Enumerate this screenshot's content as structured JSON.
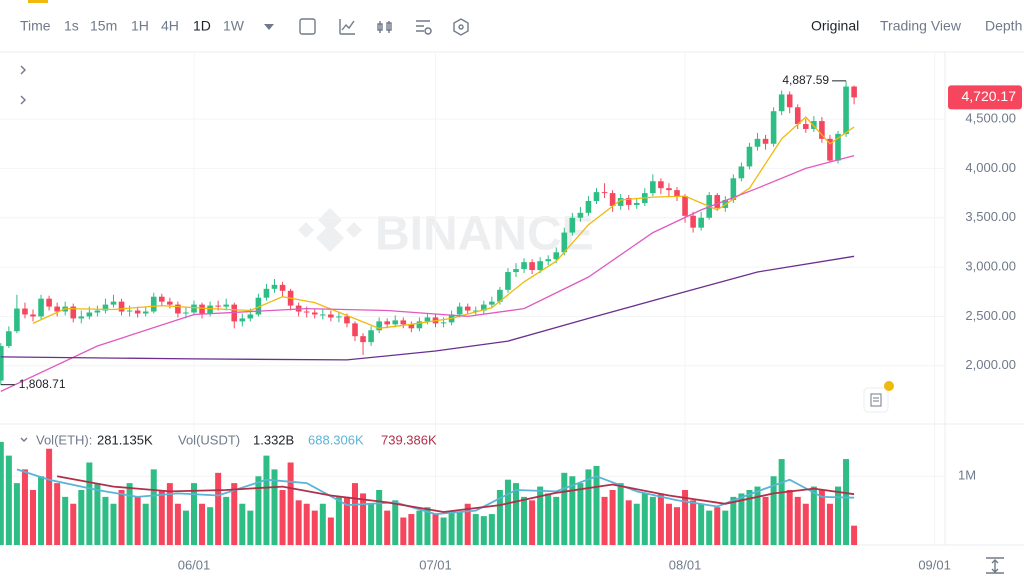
{
  "toolbar": {
    "intervals": [
      "Time",
      "1s",
      "15m",
      "1H",
      "4H",
      "1D",
      "1W"
    ],
    "views": [
      "Original",
      "Trading View",
      "Depth"
    ]
  },
  "watermark": "BINANCE",
  "chart_data": {
    "type": "candlestick",
    "up_color": "#2ebd85",
    "down_color": "#f6465d",
    "grid": true,
    "dates": [
      "05/08",
      "05/09",
      "05/10",
      "05/11",
      "05/12",
      "05/13",
      "05/14",
      "05/15",
      "05/16",
      "05/17",
      "05/18",
      "05/19",
      "05/20",
      "05/21",
      "05/22",
      "05/23",
      "05/24",
      "05/25",
      "05/26",
      "05/27",
      "05/28",
      "05/29",
      "05/30",
      "05/31",
      "06/01",
      "06/02",
      "06/03",
      "06/04",
      "06/05",
      "06/06",
      "06/07",
      "06/08",
      "06/09",
      "06/10",
      "06/11",
      "06/12",
      "06/13",
      "06/14",
      "06/15",
      "06/16",
      "06/17",
      "06/18",
      "06/19",
      "06/20",
      "06/21",
      "06/22",
      "06/23",
      "06/24",
      "06/25",
      "06/26",
      "06/27",
      "06/28",
      "06/29",
      "06/30",
      "07/01",
      "07/02",
      "07/03",
      "07/04",
      "07/05",
      "07/06",
      "07/07",
      "07/08",
      "07/09",
      "07/10",
      "07/11",
      "07/12",
      "07/13",
      "07/14",
      "07/15",
      "07/16",
      "07/17",
      "07/18",
      "07/19",
      "07/20",
      "07/21",
      "07/22",
      "07/23",
      "07/24",
      "07/25",
      "07/26",
      "07/27",
      "07/28",
      "07/29",
      "07/30",
      "07/31",
      "08/01",
      "08/02",
      "08/03",
      "08/04",
      "08/05",
      "08/06",
      "08/07",
      "08/08",
      "08/09",
      "08/10",
      "08/11",
      "08/12",
      "08/13",
      "08/14",
      "08/15",
      "08/16",
      "08/17",
      "08/18",
      "08/19",
      "08/20",
      "08/21",
      "08/22"
    ],
    "open": [
      1850,
      2200,
      2350,
      2580,
      2520,
      2500,
      2680,
      2600,
      2550,
      2600,
      2480,
      2500,
      2540,
      2560,
      2620,
      2650,
      2550,
      2560,
      2530,
      2550,
      2700,
      2650,
      2620,
      2530,
      2540,
      2620,
      2530,
      2610,
      2600,
      2620,
      2450,
      2480,
      2520,
      2690,
      2780,
      2820,
      2760,
      2610,
      2550,
      2540,
      2520,
      2520,
      2490,
      2500,
      2430,
      2300,
      2240,
      2360,
      2450,
      2420,
      2460,
      2420,
      2380,
      2450,
      2490,
      2430,
      2440,
      2520,
      2600,
      2560,
      2560,
      2620,
      2650,
      2770,
      2950,
      2980,
      3050,
      2970,
      3060,
      3080,
      3150,
      3350,
      3500,
      3550,
      3670,
      3760,
      3750,
      3620,
      3700,
      3630,
      3650,
      3750,
      3870,
      3800,
      3780,
      3720,
      3520,
      3400,
      3500,
      3730,
      3600,
      3680,
      3900,
      4020,
      4220,
      4300,
      4250,
      4580,
      4750,
      4620,
      4450,
      4400,
      4480,
      4300,
      4080,
      4350,
      4830
    ],
    "high": [
      2230,
      2400,
      2720,
      2640,
      2570,
      2720,
      2710,
      2640,
      2650,
      2630,
      2560,
      2600,
      2610,
      2680,
      2720,
      2680,
      2610,
      2600,
      2600,
      2740,
      2730,
      2690,
      2650,
      2590,
      2660,
      2640,
      2650,
      2660,
      2680,
      2640,
      2530,
      2580,
      2730,
      2830,
      2880,
      2850,
      2780,
      2640,
      2600,
      2580,
      2570,
      2560,
      2550,
      2530,
      2450,
      2330,
      2400,
      2490,
      2480,
      2510,
      2490,
      2450,
      2490,
      2530,
      2520,
      2490,
      2560,
      2640,
      2630,
      2600,
      2660,
      2700,
      2800,
      2990,
      3040,
      3090,
      3080,
      3100,
      3120,
      3200,
      3400,
      3550,
      3610,
      3720,
      3800,
      3850,
      3780,
      3740,
      3730,
      3700,
      3800,
      3940,
      3900,
      3850,
      3810,
      3740,
      3560,
      3560,
      3760,
      3750,
      3720,
      3940,
      4060,
      4260,
      4360,
      4340,
      4620,
      4790,
      4780,
      4650,
      4500,
      4530,
      4520,
      4340,
      4380,
      4887.59,
      4840
    ],
    "low": [
      1808.71,
      2180,
      2330,
      2480,
      2450,
      2470,
      2560,
      2500,
      2510,
      2440,
      2430,
      2470,
      2500,
      2530,
      2590,
      2510,
      2500,
      2490,
      2500,
      2530,
      2600,
      2580,
      2490,
      2480,
      2510,
      2480,
      2500,
      2560,
      2560,
      2380,
      2400,
      2450,
      2500,
      2660,
      2740,
      2700,
      2560,
      2500,
      2490,
      2480,
      2470,
      2450,
      2440,
      2390,
      2250,
      2110,
      2200,
      2330,
      2380,
      2390,
      2380,
      2340,
      2350,
      2420,
      2390,
      2390,
      2410,
      2490,
      2520,
      2520,
      2530,
      2590,
      2620,
      2740,
      2900,
      2940,
      2930,
      2940,
      3020,
      3040,
      3120,
      3320,
      3460,
      3520,
      3640,
      3700,
      3560,
      3580,
      3580,
      3590,
      3620,
      3720,
      3740,
      3720,
      3670,
      3450,
      3350,
      3370,
      3480,
      3570,
      3560,
      3650,
      3870,
      3990,
      4180,
      4190,
      4220,
      4540,
      4560,
      4400,
      4360,
      4370,
      4260,
      4060,
      4050,
      4320,
      4650
    ],
    "close": [
      2200,
      2350,
      2580,
      2520,
      2500,
      2680,
      2600,
      2550,
      2600,
      2480,
      2500,
      2540,
      2560,
      2620,
      2650,
      2550,
      2560,
      2530,
      2550,
      2700,
      2650,
      2620,
      2530,
      2540,
      2620,
      2530,
      2610,
      2600,
      2620,
      2450,
      2480,
      2520,
      2690,
      2780,
      2820,
      2760,
      2610,
      2550,
      2540,
      2520,
      2520,
      2490,
      2500,
      2430,
      2300,
      2240,
      2360,
      2450,
      2420,
      2460,
      2420,
      2380,
      2450,
      2490,
      2430,
      2440,
      2520,
      2600,
      2560,
      2560,
      2620,
      2650,
      2770,
      2950,
      2980,
      3050,
      2970,
      3060,
      3080,
      3150,
      3350,
      3500,
      3550,
      3670,
      3760,
      3750,
      3620,
      3700,
      3630,
      3650,
      3750,
      3870,
      3800,
      3780,
      3720,
      3520,
      3400,
      3500,
      3730,
      3600,
      3680,
      3900,
      4020,
      4220,
      4300,
      4250,
      4580,
      4750,
      4620,
      4450,
      4400,
      4480,
      4300,
      4080,
      4350,
      4830,
      4720.17
    ],
    "ylim": [
      1410,
      5180
    ],
    "yticks": [
      {
        "value": 2000,
        "label": "2,000.00"
      },
      {
        "value": 2500,
        "label": "2,500.00"
      },
      {
        "value": 3000,
        "label": "3,000.00"
      },
      {
        "value": 3500,
        "label": "3,500.00"
      },
      {
        "value": 4000,
        "label": "4,000.00"
      },
      {
        "value": 4500,
        "label": "4,500.00"
      }
    ],
    "xticks": [
      "06/01",
      "07/01",
      "08/01",
      "09/01"
    ],
    "lines": [
      {
        "color": "#f0b90b",
        "x": [
          "05/12",
          "05/16",
          "05/22",
          "05/28",
          "06/03",
          "06/08",
          "06/12",
          "06/16",
          "06/20",
          "06/24",
          "06/28",
          "07/03",
          "07/08",
          "07/12",
          "07/16",
          "07/20",
          "07/24",
          "07/28",
          "08/01",
          "08/05",
          "08/09",
          "08/13",
          "08/16",
          "08/19",
          "08/22"
        ],
        "values": [
          2430,
          2580,
          2570,
          2610,
          2580,
          2560,
          2700,
          2640,
          2510,
          2380,
          2420,
          2480,
          2590,
          2850,
          3060,
          3430,
          3680,
          3710,
          3720,
          3580,
          3800,
          4300,
          4520,
          4250,
          4420
        ]
      },
      {
        "color": "#e05ac0",
        "x": [
          "05/08",
          "05/20",
          "06/01",
          "06/15",
          "06/25",
          "07/05",
          "07/12",
          "07/20",
          "07/28",
          "08/03",
          "08/10",
          "08/16",
          "08/22"
        ],
        "values": [
          1740,
          2200,
          2520,
          2580,
          2560,
          2500,
          2580,
          2900,
          3350,
          3580,
          3800,
          4000,
          4130
        ]
      },
      {
        "color": "#6b2f8f",
        "x": [
          "05/08",
          "06/01",
          "06/20",
          "07/01",
          "07/10",
          "07/20",
          "08/01",
          "08/10",
          "08/22"
        ],
        "values": [
          2090,
          2070,
          2060,
          2150,
          2250,
          2480,
          2750,
          2950,
          3110
        ]
      }
    ],
    "annotations": [
      {
        "date": "08/21",
        "value": 4887.59,
        "label": "4,887.59"
      },
      {
        "date": "05/08",
        "value": 1808.71,
        "label": "1,808.71"
      }
    ],
    "current_price": {
      "value": 4720.17,
      "label": "4,720.17"
    },
    "volume": {
      "values": [
        1500000,
        1300000,
        900000,
        1100000,
        800000,
        1000000,
        1400000,
        900000,
        700000,
        600000,
        800000,
        1200000,
        900000,
        700000,
        600000,
        800000,
        900000,
        700000,
        600000,
        1100000,
        800000,
        900000,
        600000,
        500000,
        900000,
        600000,
        550000,
        1050000,
        700000,
        900000,
        600000,
        500000,
        1000000,
        1300000,
        1100000,
        800000,
        1200000,
        650000,
        600000,
        500000,
        600000,
        400000,
        700000,
        700000,
        900000,
        750000,
        600000,
        800000,
        500000,
        650000,
        400000,
        450000,
        500000,
        550000,
        450000,
        400000,
        500000,
        480000,
        600000,
        450000,
        420000,
        450000,
        800000,
        950000,
        900000,
        700000,
        650000,
        850000,
        750000,
        700000,
        1050000,
        1000000,
        900000,
        1100000,
        1150000,
        700000,
        800000,
        900000,
        650000,
        600000,
        750000,
        700000,
        750000,
        600000,
        550000,
        800000,
        650000,
        600000,
        500000,
        550000,
        500000,
        700000,
        750000,
        800000,
        850000,
        700000,
        1000000,
        1250000,
        800000,
        700000,
        600000,
        850000,
        800000,
        600000,
        850000,
        1250000,
        281135
      ],
      "ylim": [
        0,
        1760000
      ],
      "yticks": [
        {
          "value": 1000000,
          "label": "1M"
        }
      ],
      "legend": {
        "eth_label": "Vol(ETH):",
        "eth_value": "281.135K",
        "usdt_label": "Vol(USDT)",
        "usdt_value": "1.332B"
      },
      "ma_lines": [
        {
          "color": "#5ab4d6",
          "x": [
            "05/10",
            "05/14",
            "05/20",
            "05/25",
            "05/30",
            "06/04",
            "06/10",
            "06/15",
            "06/20",
            "06/26",
            "07/01",
            "07/06",
            "07/11",
            "07/16",
            "07/21",
            "07/26",
            "07/31",
            "08/05",
            "08/10",
            "08/14",
            "08/18",
            "08/22"
          ],
          "values": [
            1100000,
            950000,
            800000,
            700000,
            750000,
            720000,
            950000,
            900000,
            580000,
            620000,
            450000,
            500000,
            800000,
            780000,
            1000000,
            780000,
            650000,
            560000,
            780000,
            950000,
            700000,
            688306
          ],
          "last_label": "688.306K"
        },
        {
          "color": "#b0304a",
          "x": [
            "05/15",
            "05/22",
            "05/29",
            "06/05",
            "06/12",
            "06/18",
            "06/25",
            "07/02",
            "07/09",
            "07/16",
            "07/23",
            "07/30",
            "08/06",
            "08/12",
            "08/17",
            "08/22"
          ],
          "values": [
            1000000,
            850000,
            780000,
            800000,
            850000,
            720000,
            620000,
            480000,
            580000,
            760000,
            880000,
            720000,
            600000,
            750000,
            820000,
            739386
          ],
          "last_label": "739.386K"
        }
      ]
    }
  }
}
